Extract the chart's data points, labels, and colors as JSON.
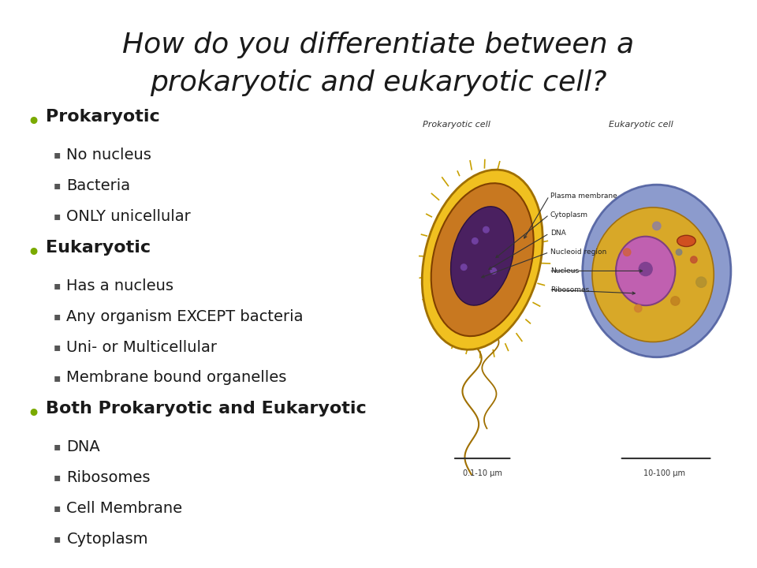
{
  "title_line1": "How do you differentiate between a",
  "title_line2": "prokaryotic and eukaryotic cell?",
  "title_fontsize": 26,
  "title_style": "italic",
  "title_color": "#1a1a1a",
  "background_color": "#ffffff",
  "bullet_color": "#7aaa00",
  "text_color": "#1a1a1a",
  "header_fontsize": 16,
  "item_fontsize": 14,
  "sections": [
    {
      "header": "Prokaryotic",
      "items": [
        "No nucleus",
        "Bacteria",
        "ONLY unicellular"
      ]
    },
    {
      "header": "Eukaryotic",
      "items": [
        "Has a nucleus",
        "Any organism EXCEPT bacteria",
        "Uni- or Multicellular",
        "Membrane bound organelles"
      ]
    },
    {
      "header": "Both Prokaryotic and Eukaryotic",
      "items": [
        "DNA",
        "Ribosomes",
        "Cell Membrane",
        "Cytoplasm"
      ]
    }
  ],
  "img_labels": {
    "prok_cell": "Prokaryotic cell",
    "euk_cell": "Eukaryotic cell",
    "plasma_mem": "Plasma membrane",
    "cytoplasm": "Cytoplasm",
    "dna": "DNA",
    "nucleoid": "Nucleoid region",
    "nucleus": "Nucleus",
    "ribosomes": "Ribosomes",
    "scale_prok": "0.1-10 µm",
    "scale_euk": "10-100 µm"
  }
}
